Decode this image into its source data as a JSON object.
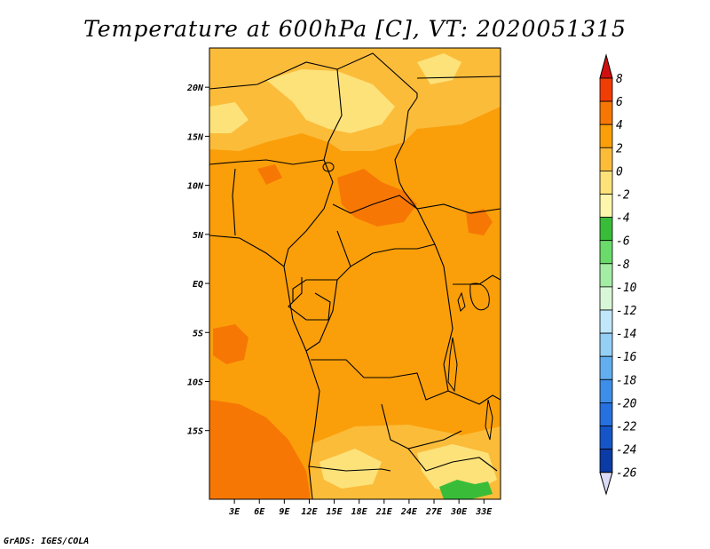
{
  "title": "Temperature at 600hPa [C], VT: 2020051315",
  "credit": "GrADS: IGES/COLA",
  "map": {
    "lon_range": [
      0,
      35
    ],
    "lat_range": [
      -22,
      24
    ],
    "lon_ticks": [
      "3E",
      "6E",
      "9E",
      "12E",
      "15E",
      "18E",
      "21E",
      "24E",
      "27E",
      "30E",
      "33E"
    ],
    "lat_ticks": [
      "20N",
      "15N",
      "10N",
      "5N",
      "EQ",
      "5S",
      "10S",
      "15S"
    ]
  },
  "colorbar": {
    "labels": [
      "8",
      "6",
      "4",
      "2",
      "0",
      "-2",
      "-4",
      "-6",
      "-8",
      "-10",
      "-12",
      "-14",
      "-16",
      "-18",
      "-20",
      "-22",
      "-24",
      "-26"
    ],
    "colors": [
      "#d01010",
      "#f03c05",
      "#f77705",
      "#fa9f0a",
      "#fbbc3a",
      "#fde27a",
      "#fdf6ac",
      "#39bd39",
      "#6ada6a",
      "#a4eda4",
      "#d8f7d8",
      "#c0e6fa",
      "#94cff5",
      "#62aeee",
      "#3d8ee8",
      "#2670e0",
      "#1655c8",
      "#0b3ba5",
      "#061f78",
      "#dcdcf8"
    ]
  },
  "chart_data": {
    "type": "heatmap",
    "title": "Temperature at 600hPa [C], VT: 2020051315",
    "x_ticks": [
      "3E",
      "6E",
      "9E",
      "12E",
      "15E",
      "18E",
      "21E",
      "24E",
      "27E",
      "30E",
      "33E"
    ],
    "y_ticks": [
      "20N",
      "15N",
      "10N",
      "5N",
      "EQ",
      "5S",
      "10S",
      "15S"
    ],
    "colorbar_levels": [
      8,
      6,
      4,
      2,
      0,
      -2,
      -4,
      -6,
      -8,
      -10,
      -12,
      -14,
      -16,
      -18,
      -20,
      -22,
      -24,
      -26
    ]
  }
}
